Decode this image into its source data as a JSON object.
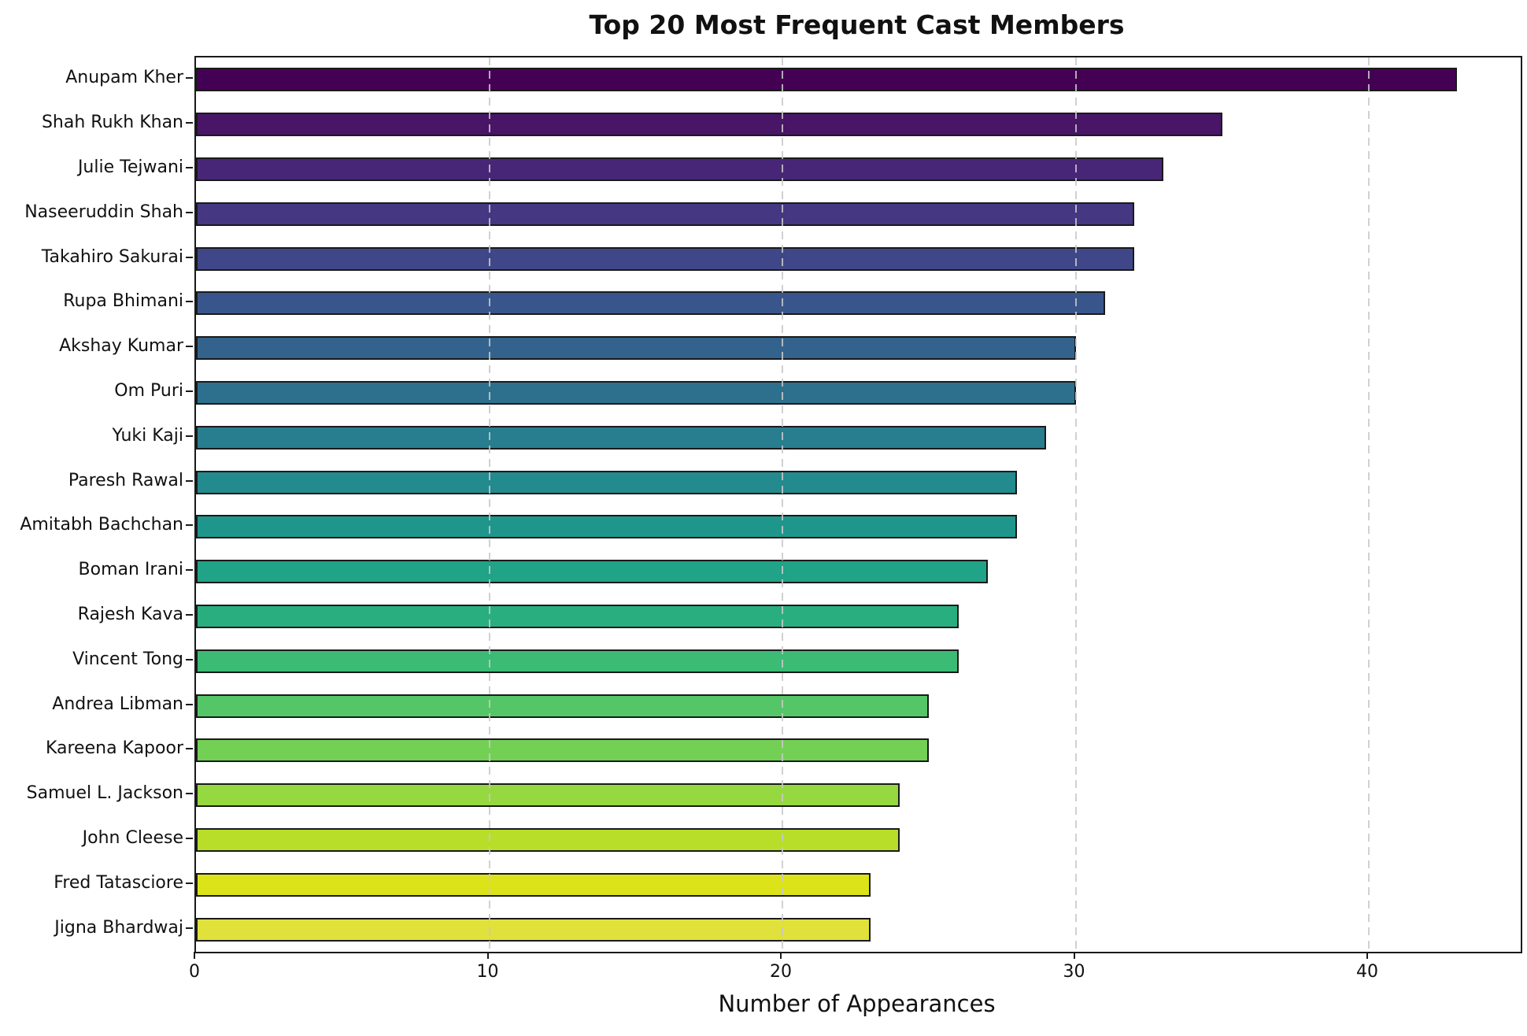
{
  "chart_data": {
    "type": "bar",
    "orientation": "horizontal",
    "title": "Top 20 Most Frequent Cast Members",
    "xlabel": "Number of Appearances",
    "ylabel": "",
    "categories": [
      "Anupam Kher",
      "Shah Rukh Khan",
      "Julie Tejwani",
      "Naseeruddin Shah",
      "Takahiro Sakurai",
      "Rupa Bhimani",
      "Akshay Kumar",
      "Om Puri",
      "Yuki Kaji",
      "Paresh Rawal",
      "Amitabh Bachchan",
      "Boman Irani",
      "Rajesh Kava",
      "Vincent Tong",
      "Andrea Libman",
      "Kareena Kapoor",
      "Samuel L. Jackson",
      "John Cleese",
      "Fred Tatasciore",
      "Jigna Bhardwaj"
    ],
    "values": [
      43,
      35,
      33,
      32,
      32,
      31,
      30,
      30,
      29,
      28,
      28,
      27,
      26,
      26,
      25,
      25,
      24,
      24,
      23,
      23
    ],
    "bar_colors": [
      "#440154",
      "#481567",
      "#482677",
      "#453781",
      "#404788",
      "#39568C",
      "#33638D",
      "#2D708E",
      "#287D8E",
      "#238A8D",
      "#1F968B",
      "#20A387",
      "#29AF7F",
      "#3CBB75",
      "#55C667",
      "#73D055",
      "#95D840",
      "#B8DE29",
      "#DCE319",
      "#E0E13A"
    ],
    "bar_edge_color": "#1a1a1a",
    "xlim": [
      0,
      45.2
    ],
    "xticks": [
      0,
      10,
      20,
      30,
      40
    ],
    "grid": "vertical-dashed-on-top",
    "gridline_color": "#c9c9c9",
    "legend": "none"
  }
}
